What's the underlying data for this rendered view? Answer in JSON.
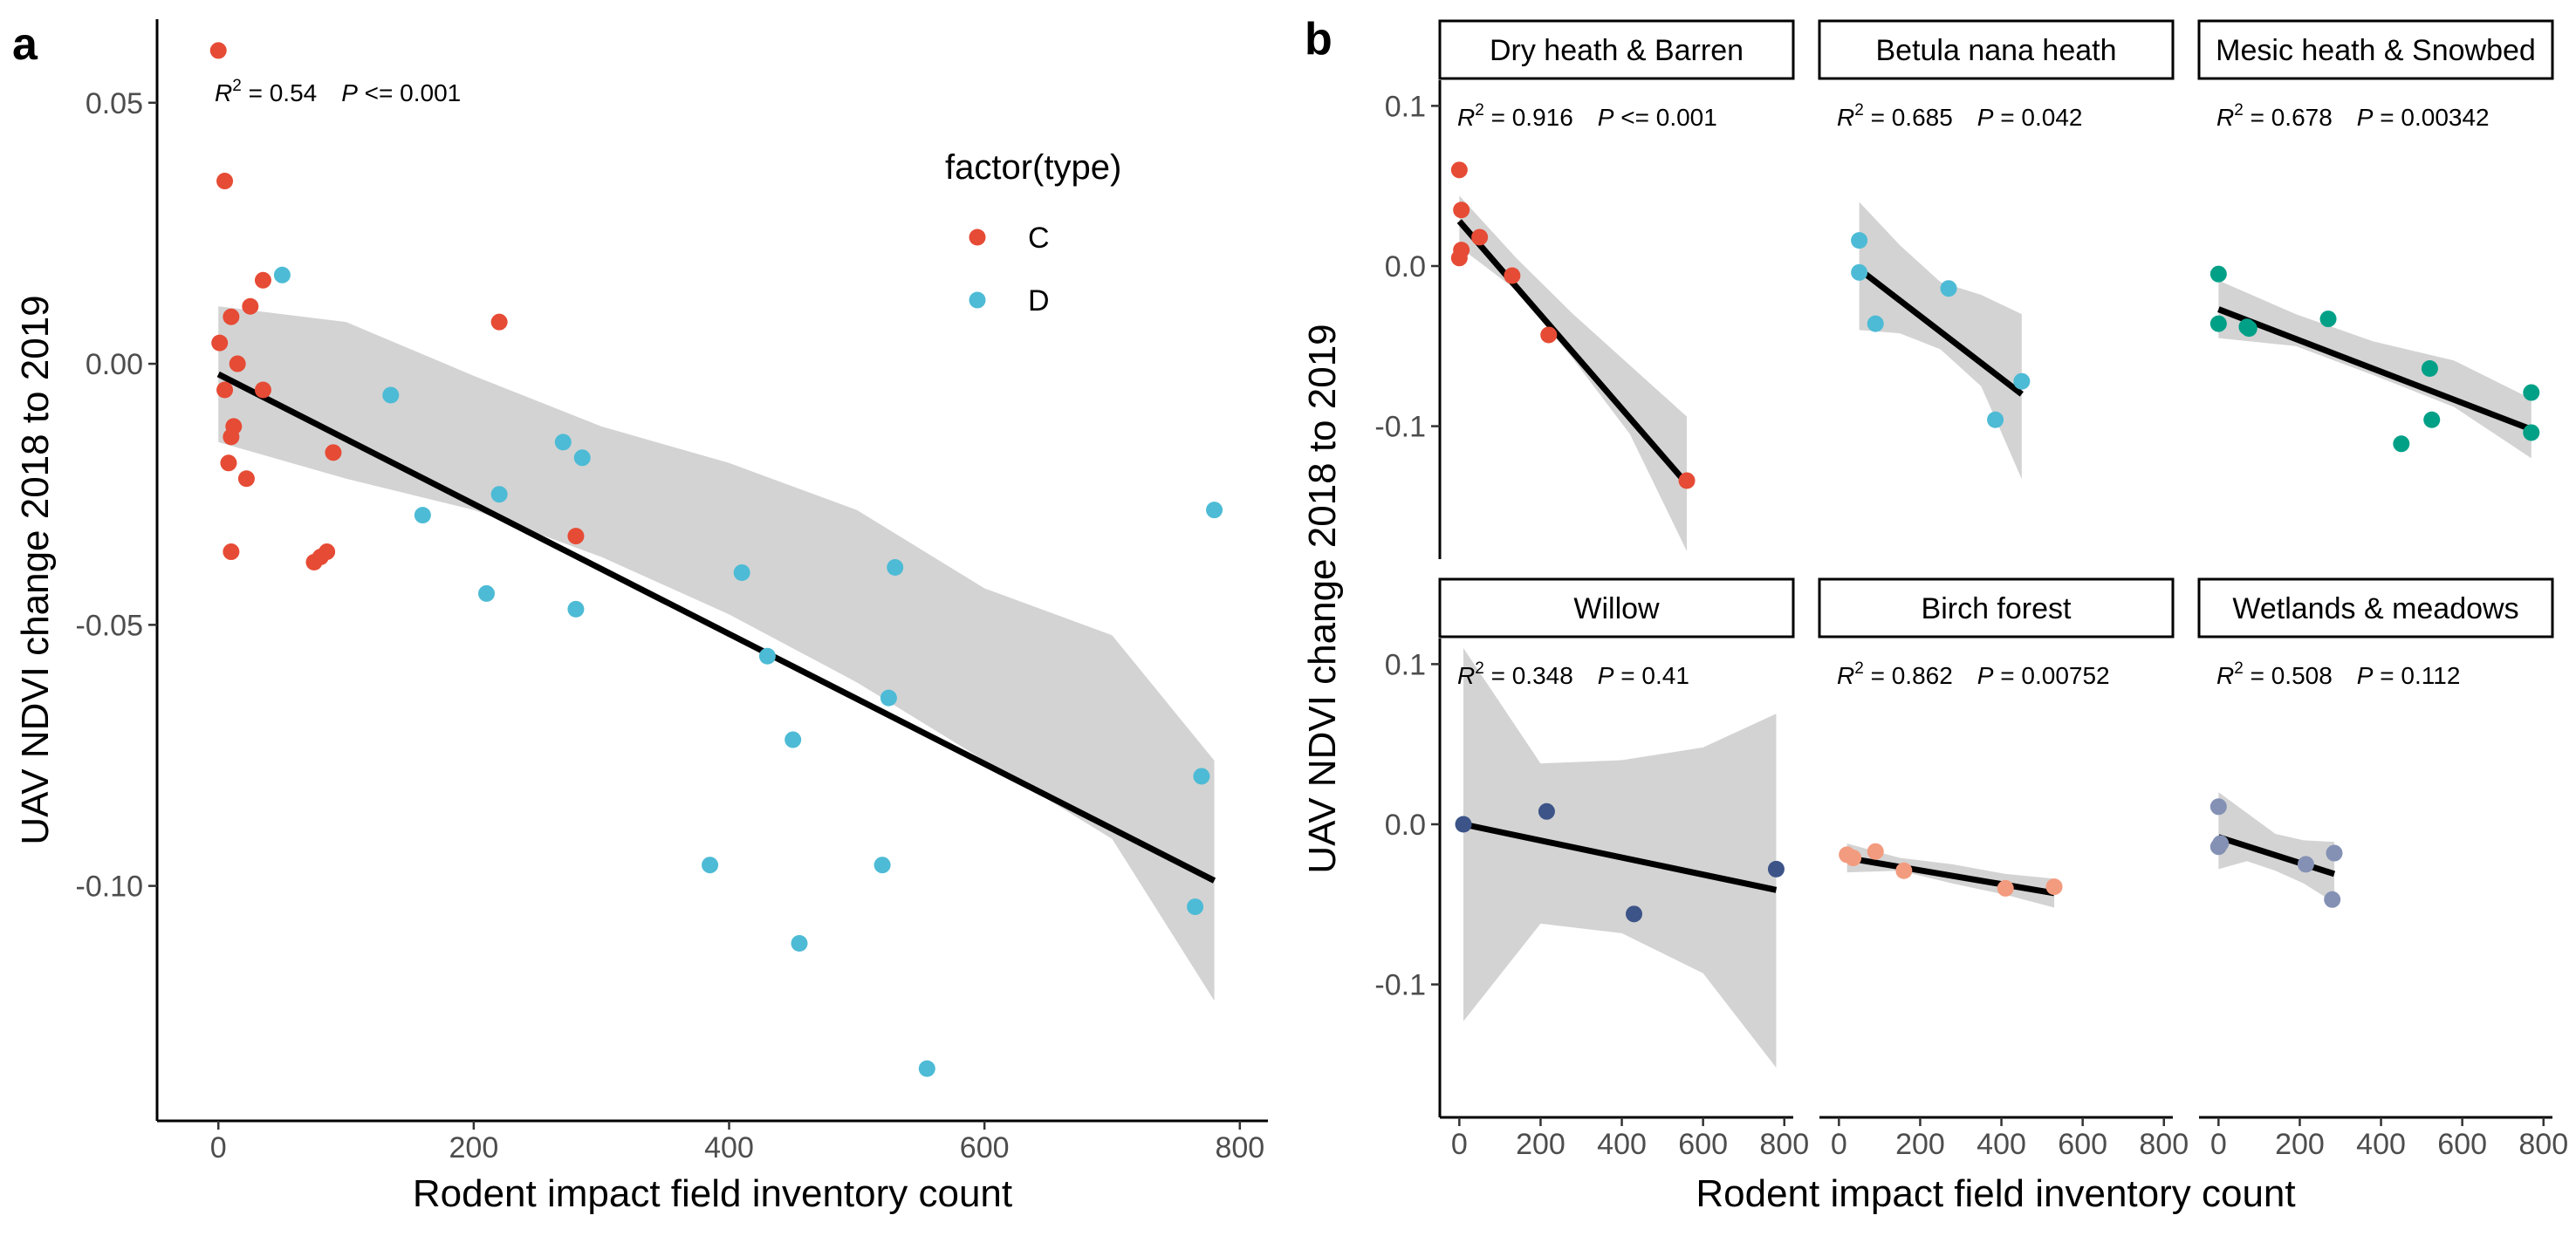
{
  "panel_labels": {
    "a": "a",
    "b": "b"
  },
  "stat_labels": {
    "r2_prefix": "R",
    "r2_exp": "2",
    "p_prefix": "P"
  },
  "legend": {
    "title": "factor(type)",
    "items": [
      {
        "label": "C",
        "color": "#E64B35"
      },
      {
        "label": "D",
        "color": "#4DBBD5"
      }
    ]
  },
  "chart_data": [
    {
      "id": "panel-a",
      "type": "scatter",
      "title": "",
      "xlabel": "Rodent impact field inventory count",
      "ylabel": "UAV NDVI change 2018 to 2019",
      "xlim": [
        -48,
        822
      ],
      "ylim": [
        -0.145,
        0.066
      ],
      "xticks": [
        0,
        200,
        400,
        600,
        800
      ],
      "yticks": [
        -0.1,
        -0.05,
        0.0,
        0.05
      ],
      "ytick_labels": [
        "-0.10",
        "-0.05",
        "0.00",
        "0.05"
      ],
      "grid": false,
      "legend_position": "top-right",
      "stats": {
        "r2": "= 0.54",
        "p": "<= 0.001"
      },
      "fit_line": {
        "x": [
          0,
          780
        ],
        "y": [
          -0.002,
          -0.099
        ]
      },
      "confidence_band": {
        "x": [
          0,
          100,
          200,
          300,
          400,
          500,
          600,
          700,
          780
        ],
        "lower": [
          -0.015,
          -0.022,
          -0.028,
          -0.037,
          -0.048,
          -0.061,
          -0.076,
          -0.091,
          -0.122
        ],
        "upper": [
          0.011,
          0.008,
          -0.0023,
          -0.012,
          -0.019,
          -0.028,
          -0.043,
          -0.052,
          -0.076
        ]
      },
      "series": [
        {
          "name": "C",
          "color": "#E64B35",
          "points": [
            [
              0,
              0.06
            ],
            [
              5,
              0.035
            ],
            [
              35,
              0.016
            ],
            [
              25,
              0.011
            ],
            [
              10,
              0.009
            ],
            [
              1,
              0.004
            ],
            [
              15,
              0.0
            ],
            [
              5,
              -0.005
            ],
            [
              35,
              -0.005
            ],
            [
              12,
              -0.012
            ],
            [
              10,
              -0.014
            ],
            [
              8,
              -0.019
            ],
            [
              22,
              -0.022
            ],
            [
              10,
              -0.036
            ],
            [
              75,
              -0.038
            ],
            [
              80,
              -0.037
            ],
            [
              85,
              -0.036
            ],
            [
              90,
              -0.017
            ],
            [
              220,
              0.008
            ],
            [
              280,
              -0.033
            ]
          ]
        },
        {
          "name": "D",
          "color": "#4DBBD5",
          "points": [
            [
              50,
              0.017
            ],
            [
              135,
              -0.006
            ],
            [
              160,
              -0.029
            ],
            [
              210,
              -0.044
            ],
            [
              220,
              -0.025
            ],
            [
              270,
              -0.015
            ],
            [
              285,
              -0.018
            ],
            [
              280,
              -0.047
            ],
            [
              410,
              -0.04
            ],
            [
              430,
              -0.056
            ],
            [
              450,
              -0.072
            ],
            [
              530,
              -0.039
            ],
            [
              525,
              -0.064
            ],
            [
              520,
              -0.096
            ],
            [
              385,
              -0.096
            ],
            [
              455,
              -0.111
            ],
            [
              555,
              -0.135
            ],
            [
              765,
              -0.104
            ],
            [
              770,
              -0.079
            ],
            [
              780,
              -0.028
            ]
          ]
        }
      ]
    },
    {
      "id": "panel-b",
      "type": "scatter",
      "title": "",
      "xlabel": "Rodent impact field inventory count",
      "ylabel": "UAV NDVI change 2018 to 2019",
      "xlim": [
        -48,
        822
      ],
      "ylim": [
        -0.183,
        0.116
      ],
      "xticks": [
        0,
        200,
        400,
        600,
        800
      ],
      "yticks": [
        -0.1,
        0.0,
        0.1
      ],
      "ytick_labels": [
        "-0.1",
        "0.0",
        "0.1"
      ],
      "grid": false,
      "facets": [
        {
          "label": "Dry heath & Barren",
          "color": "#E64B35",
          "stats": {
            "r2": "= 0.916",
            "p": "<= 0.001"
          },
          "points": [
            [
              0,
              0.06
            ],
            [
              5,
              0.035
            ],
            [
              5,
              0.01
            ],
            [
              0,
              0.005
            ],
            [
              50,
              0.018
            ],
            [
              130,
              -0.006
            ],
            [
              220,
              -0.043
            ],
            [
              560,
              -0.134
            ]
          ],
          "fit_line": {
            "x": [
              0,
              560
            ],
            "y": [
              0.028,
              -0.136
            ]
          },
          "confidence_band": {
            "x": [
              0,
              140,
              280,
              420,
              560
            ],
            "lower": [
              0.012,
              -0.015,
              -0.058,
              -0.105,
              -0.178
            ],
            "upper": [
              0.044,
              0.005,
              -0.03,
              -0.062,
              -0.094
            ]
          }
        },
        {
          "label": "Betula nana heath",
          "color": "#4DBBD5",
          "stats": {
            "r2": "= 0.685",
            "p": "= 0.042"
          },
          "points": [
            [
              50,
              0.016
            ],
            [
              50,
              -0.004
            ],
            [
              90,
              -0.036
            ],
            [
              270,
              -0.014
            ],
            [
              385,
              -0.096
            ],
            [
              450,
              -0.072
            ]
          ],
          "fit_line": {
            "x": [
              50,
              450
            ],
            "y": [
              -0.002,
              -0.08
            ]
          },
          "confidence_band": {
            "x": [
              50,
              150,
              250,
              350,
              450
            ],
            "lower": [
              -0.04,
              -0.042,
              -0.052,
              -0.075,
              -0.133
            ],
            "upper": [
              0.04,
              0.013,
              -0.01,
              -0.018,
              -0.03
            ]
          }
        },
        {
          "label": "Mesic heath & Snowbed",
          "color": "#00A087",
          "stats": {
            "r2": "= 0.678",
            "p": "= 0.00342"
          },
          "points": [
            [
              0,
              -0.005
            ],
            [
              0,
              -0.036
            ],
            [
              70,
              -0.038
            ],
            [
              75,
              -0.039
            ],
            [
              270,
              -0.033
            ],
            [
              450,
              -0.111
            ],
            [
              520,
              -0.064
            ],
            [
              525,
              -0.096
            ],
            [
              770,
              -0.079
            ],
            [
              770,
              -0.104
            ]
          ],
          "fit_line": {
            "x": [
              0,
              770
            ],
            "y": [
              -0.027,
              -0.102
            ]
          },
          "confidence_band": {
            "x": [
              0,
              190,
              380,
              580,
              770
            ],
            "lower": [
              -0.045,
              -0.05,
              -0.068,
              -0.088,
              -0.12
            ],
            "upper": [
              -0.009,
              -0.03,
              -0.047,
              -0.059,
              -0.083
            ]
          }
        },
        {
          "label": "Willow",
          "color": "#3C5488",
          "stats": {
            "r2": "= 0.348",
            "p": "= 0.41"
          },
          "points": [
            [
              10,
              0.0
            ],
            [
              215,
              0.008
            ],
            [
              430,
              -0.056
            ],
            [
              780,
              -0.028
            ]
          ],
          "fit_line": {
            "x": [
              10,
              780
            ],
            "y": [
              0.0,
              -0.041
            ]
          },
          "confidence_band": {
            "x": [
              10,
              200,
              400,
              600,
              780
            ],
            "lower": [
              -0.123,
              -0.062,
              -0.068,
              -0.093,
              -0.152
            ],
            "upper": [
              0.11,
              0.038,
              0.04,
              0.048,
              0.069
            ]
          }
        },
        {
          "label": "Birch forest",
          "color": "#F39B7F",
          "stats": {
            "r2": "= 0.862",
            "p": "= 0.00752"
          },
          "points": [
            [
              20,
              -0.019
            ],
            [
              35,
              -0.021
            ],
            [
              90,
              -0.017
            ],
            [
              160,
              -0.029
            ],
            [
              410,
              -0.04
            ],
            [
              530,
              -0.039
            ]
          ],
          "fit_line": {
            "x": [
              20,
              530
            ],
            "y": [
              -0.021,
              -0.043
            ]
          },
          "confidence_band": {
            "x": [
              20,
              150,
              280,
              410,
              530
            ],
            "lower": [
              -0.03,
              -0.029,
              -0.037,
              -0.044,
              -0.052
            ],
            "upper": [
              -0.012,
              -0.021,
              -0.025,
              -0.031,
              -0.034
            ]
          }
        },
        {
          "label": "Wetlands & meadows",
          "color": "#8491B4",
          "stats": {
            "r2": "= 0.508",
            "p": "= 0.112"
          },
          "points": [
            [
              0,
              0.011
            ],
            [
              0,
              -0.014
            ],
            [
              5,
              -0.012
            ],
            [
              215,
              -0.025
            ],
            [
              285,
              -0.018
            ],
            [
              280,
              -0.047
            ]
          ],
          "fit_line": {
            "x": [
              0,
              285
            ],
            "y": [
              -0.008,
              -0.031
            ]
          },
          "confidence_band": {
            "x": [
              0,
              70,
              140,
              210,
              285
            ],
            "lower": [
              -0.028,
              -0.023,
              -0.029,
              -0.037,
              -0.049
            ],
            "upper": [
              0.02,
              0.007,
              -0.006,
              -0.01,
              -0.011
            ]
          }
        }
      ]
    }
  ]
}
